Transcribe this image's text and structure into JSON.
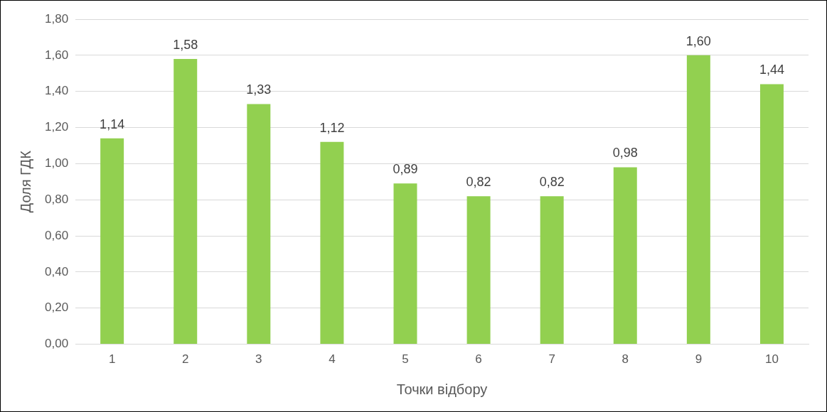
{
  "chart_data": {
    "type": "bar",
    "xlabel": "Точки відбору",
    "ylabel": "Доля ГДК",
    "categories": [
      "1",
      "2",
      "3",
      "4",
      "5",
      "6",
      "7",
      "8",
      "9",
      "10"
    ],
    "values": [
      1.14,
      1.58,
      1.33,
      1.12,
      0.89,
      0.82,
      0.82,
      0.98,
      1.6,
      1.44
    ],
    "value_labels": [
      "1,14",
      "1,58",
      "1,33",
      "1,12",
      "0,89",
      "0,82",
      "0,82",
      "0,98",
      "1,60",
      "1,44"
    ],
    "color": "#92d050",
    "ylim": [
      0,
      1.8
    ],
    "yticks": [
      {
        "value": 0,
        "label": "0,00"
      },
      {
        "value": 0.2,
        "label": "0,20"
      },
      {
        "value": 0.4,
        "label": "0,40"
      },
      {
        "value": 0.6,
        "label": "0,60"
      },
      {
        "value": 0.8,
        "label": "0,80"
      },
      {
        "value": 1,
        "label": "1,00"
      },
      {
        "value": 1.2,
        "label": "1,20"
      },
      {
        "value": 1.4,
        "label": "1,40"
      },
      {
        "value": 1.6,
        "label": "1,60"
      },
      {
        "value": 1.8,
        "label": "1,80"
      }
    ],
    "grid": "y"
  }
}
